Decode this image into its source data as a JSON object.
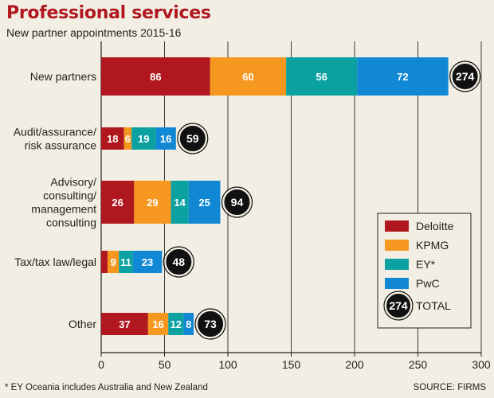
{
  "title": "Professional services",
  "subtitle": "New partner appointments 2015-16",
  "footnote": "* EY Oceania includes Australia and New Zealand",
  "source": "SOURCE: FIRMS",
  "colors": {
    "title": "#b0171f",
    "background": "#f2eee3",
    "Deloitte": "#b0171f",
    "KPMG": "#f6981f",
    "EY": "#0aa1a0",
    "PwC": "#1188d4",
    "total_circle": "#111111"
  },
  "chart_data": {
    "type": "bar",
    "orientation": "horizontal",
    "stacked": true,
    "title": "Professional services",
    "subtitle": "New partner appointments 2015-16",
    "categories": [
      [
        "New partners"
      ],
      [
        "Audit/assurance/",
        "risk assurance"
      ],
      [
        "Advisory/",
        "consulting/",
        "management",
        "consulting"
      ],
      [
        "Tax/tax law/legal"
      ],
      [
        "Other"
      ]
    ],
    "series": [
      {
        "name": "Deloitte",
        "color": "#b0171f",
        "values": [
          86,
          18,
          26,
          5,
          37
        ]
      },
      {
        "name": "KPMG",
        "color": "#f6981f",
        "values": [
          60,
          6,
          29,
          9,
          16
        ]
      },
      {
        "name": "EY*",
        "color": "#0aa1a0",
        "values": [
          56,
          19,
          14,
          11,
          12
        ]
      },
      {
        "name": "PwC",
        "color": "#1188d4",
        "values": [
          72,
          16,
          25,
          23,
          8
        ]
      }
    ],
    "segment_labels": [
      [
        "86",
        "60",
        "56",
        "72"
      ],
      [
        "18",
        "6",
        "19",
        "16"
      ],
      [
        "26",
        "29",
        "14",
        "25"
      ],
      [
        "",
        "9",
        "11",
        "23"
      ],
      [
        "37",
        "16",
        "12",
        "8"
      ]
    ],
    "totals": [
      274,
      59,
      94,
      48,
      73
    ],
    "xlim": [
      0,
      300
    ],
    "xticks": [
      0,
      50,
      100,
      150,
      200,
      250,
      300
    ],
    "grid": "vertical",
    "legend": {
      "position": "bottom-right",
      "entries": [
        "Deloitte",
        "KPMG",
        "EY*",
        "PwC"
      ],
      "total_sample": "274",
      "total_label": "TOTAL"
    }
  }
}
